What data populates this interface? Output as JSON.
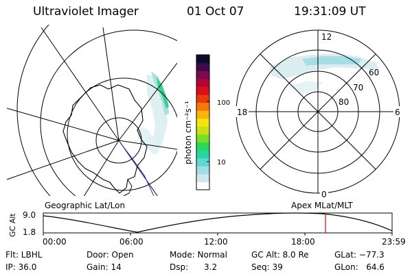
{
  "header": {
    "title": "Ultraviolet Imager",
    "date": "01 Oct 07",
    "time": "19:31:09 UT"
  },
  "colorbar": {
    "unit_label": "photon cm⁻²s⁻¹",
    "tick_labels": [
      "100",
      "10"
    ],
    "colors": [
      "#ffffff",
      "#cfe7ef",
      "#a3dbe7",
      "#5fd8cf",
      "#27d6a0",
      "#2cd85a",
      "#7bdc2a",
      "#c8df1c",
      "#f2e410",
      "#f7b50d",
      "#f5780c",
      "#ea3a0a",
      "#d9101a",
      "#b30634",
      "#7d0a4f",
      "#3e0a49",
      "#0b0b2b"
    ]
  },
  "polar_plot": {
    "mlt_labels": [
      "12",
      "18",
      "6",
      "0"
    ],
    "mlat_labels": [
      "60",
      "70",
      "80"
    ]
  },
  "map_labels": {
    "geographic": "Geographic Lat/Lon",
    "apex": "Apex MLat/MLT"
  },
  "altitude_plot": {
    "ylabel": "GC Alt",
    "yticks": [
      "9.0",
      "1.8"
    ],
    "xticks": [
      "00:00",
      "06:00",
      "12:00",
      "18:00",
      "23:59"
    ],
    "marker_color": "#e01818"
  },
  "info": {
    "flt": "Flt: LBHL",
    "ip": "IP: 36.0",
    "door": "Door: Open",
    "gain": "Gain: 14",
    "mode": "Mode: Normal",
    "dsp": "Dsp:      3.2",
    "gcalt": "GC Alt: 8.0 Re",
    "seq": "Seq: 39",
    "glat": "GLat: −77.3",
    "glon": "GLon:   64.6"
  }
}
